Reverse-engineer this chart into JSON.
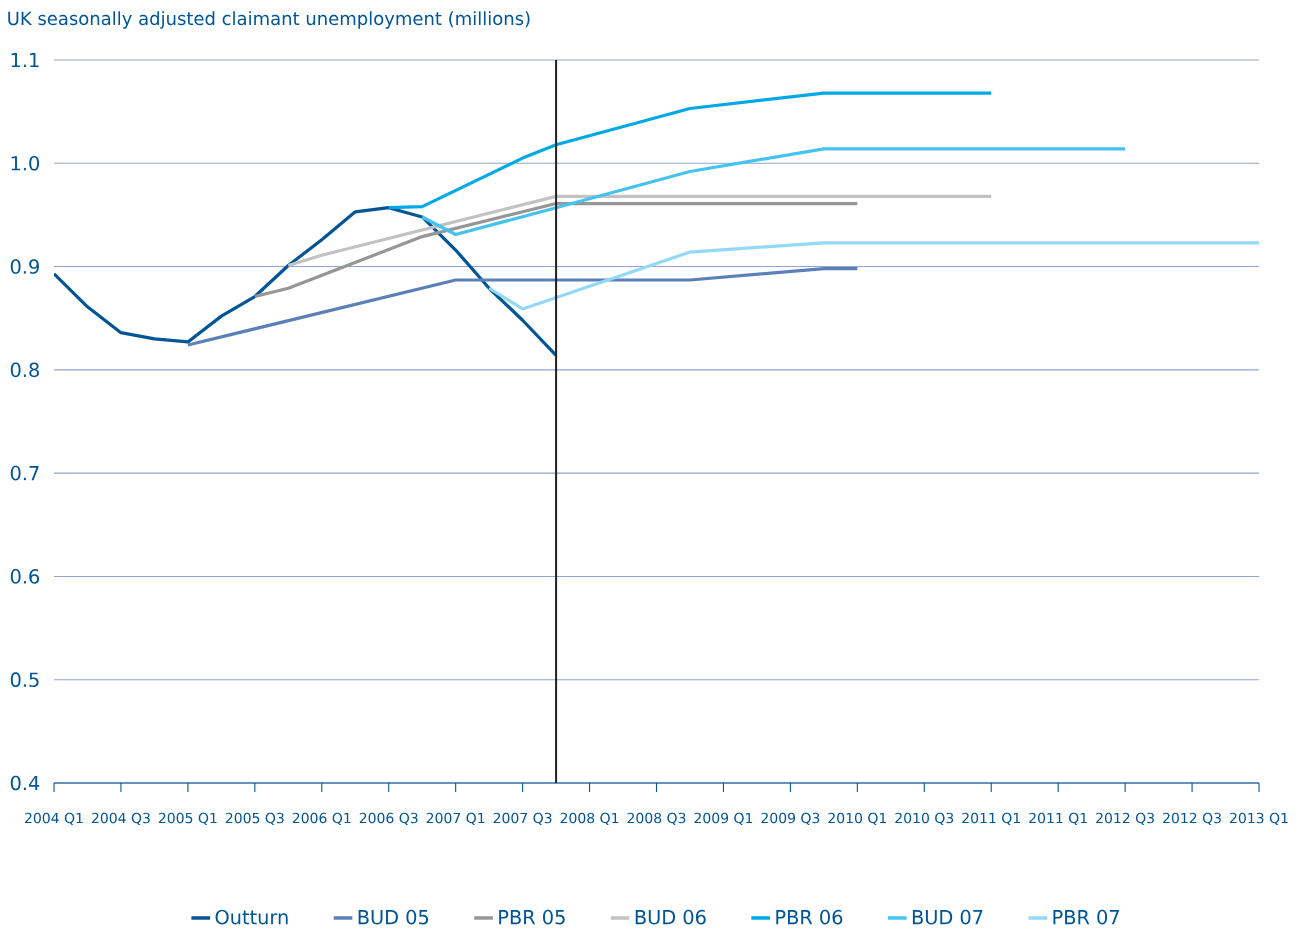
{
  "chart_data": {
    "type": "line",
    "ylabel": "UK seasonally adjusted claimant unemployment (millions)",
    "ylim": [
      0.4,
      1.1
    ],
    "yticks": [
      0.4,
      0.5,
      0.6,
      0.7,
      0.8,
      0.9,
      {
        "value": 1.0,
        "label": "1.0"
      },
      1.1
    ],
    "xlim": [
      "2004-01",
      "2013-01"
    ],
    "xticks": [
      {
        "value": "2004-01",
        "label": "2004 Q1"
      },
      {
        "value": "2004-07",
        "label": "2004 Q3"
      },
      {
        "value": "2005-01",
        "label": "2005 Q1"
      },
      {
        "value": "2005-07",
        "label": "2005 Q3"
      },
      {
        "value": "2006-01",
        "label": "2006 Q1"
      },
      {
        "value": "2006-07",
        "label": "2006 Q3"
      },
      {
        "value": "2007-01",
        "label": "2007 Q1"
      },
      {
        "value": "2007-07",
        "label": "2007 Q3"
      },
      {
        "value": "2008-01",
        "label": "2008 Q1"
      },
      {
        "value": "2008-07",
        "label": "2008 Q3"
      },
      {
        "value": "2009-01",
        "label": "2009 Q1"
      },
      {
        "value": "2009-07",
        "label": "2009 Q3"
      },
      {
        "value": "2010-01",
        "label": "2010 Q1"
      },
      {
        "value": "2010-07",
        "label": "2010 Q3"
      },
      {
        "value": "2011-01",
        "label": "2011 Q1"
      },
      {
        "value": "2011-07",
        "label": "2011 Q1"
      },
      {
        "value": "2012-01",
        "label": "2012 Q3"
      },
      {
        "value": "2012-07",
        "label": "2012 Q3"
      },
      {
        "value": "2013-01",
        "label": "2013 Q1"
      }
    ],
    "grid": "y",
    "legend": "bottom",
    "ref_lines": [
      {
        "axis": "x",
        "value": "2007-10",
        "color": "#231f20"
      }
    ],
    "series": [
      {
        "name": "Outturn",
        "color": "#005596",
        "x": [
          "2004-01",
          "2004-04",
          "2004-07",
          "2004-10",
          "2005-01",
          "2005-04",
          "2005-07",
          "2005-10",
          "2006-01",
          "2006-04",
          "2006-07",
          "2006-10",
          "2007-01",
          "2007-04",
          "2007-07",
          "2007-10"
        ],
        "values": [
          0.893,
          0.861,
          0.836,
          0.83,
          0.827,
          0.852,
          0.871,
          0.901,
          0.926,
          0.953,
          0.957,
          0.948,
          0.916,
          0.879,
          0.848,
          0.814
        ]
      },
      {
        "name": "BUD 05",
        "color": "#5b80b8",
        "x": [
          "2005-01",
          "2007-01",
          "2008-10",
          "2009-10",
          "2010-01"
        ],
        "values": [
          0.824,
          0.887,
          0.887,
          0.898,
          0.898
        ]
      },
      {
        "name": "PBR 05",
        "color": "#969696",
        "x": [
          "2005-07",
          "2005-10",
          "2006-10",
          "2007-10",
          "2010-01"
        ],
        "values": [
          0.871,
          0.879,
          0.929,
          0.961,
          0.961
        ]
      },
      {
        "name": "BUD 06",
        "color": "#c2c2c2",
        "x": [
          "2005-10",
          "2006-01",
          "2007-10",
          "2011-01"
        ],
        "values": [
          0.901,
          0.911,
          0.968,
          0.968
        ]
      },
      {
        "name": "PBR 06",
        "color": "#00a9e6",
        "x": [
          "2006-07",
          "2006-10",
          "2007-07",
          "2007-10",
          "2008-10",
          "2009-10",
          "2011-01"
        ],
        "values": [
          0.957,
          0.958,
          1.005,
          1.018,
          1.053,
          1.068,
          1.068
        ]
      },
      {
        "name": "BUD 07",
        "color": "#44c3f0",
        "x": [
          "2006-10",
          "2007-01",
          "2007-10",
          "2008-10",
          "2009-10",
          "2012-01"
        ],
        "values": [
          0.948,
          0.931,
          0.957,
          0.992,
          1.014,
          1.014
        ]
      },
      {
        "name": "PBR 07",
        "color": "#92d9f7",
        "x": [
          "2007-04",
          "2007-07",
          "2008-10",
          "2009-10",
          "2013-01"
        ],
        "values": [
          0.879,
          0.859,
          0.914,
          0.923,
          0.923
        ]
      }
    ]
  }
}
